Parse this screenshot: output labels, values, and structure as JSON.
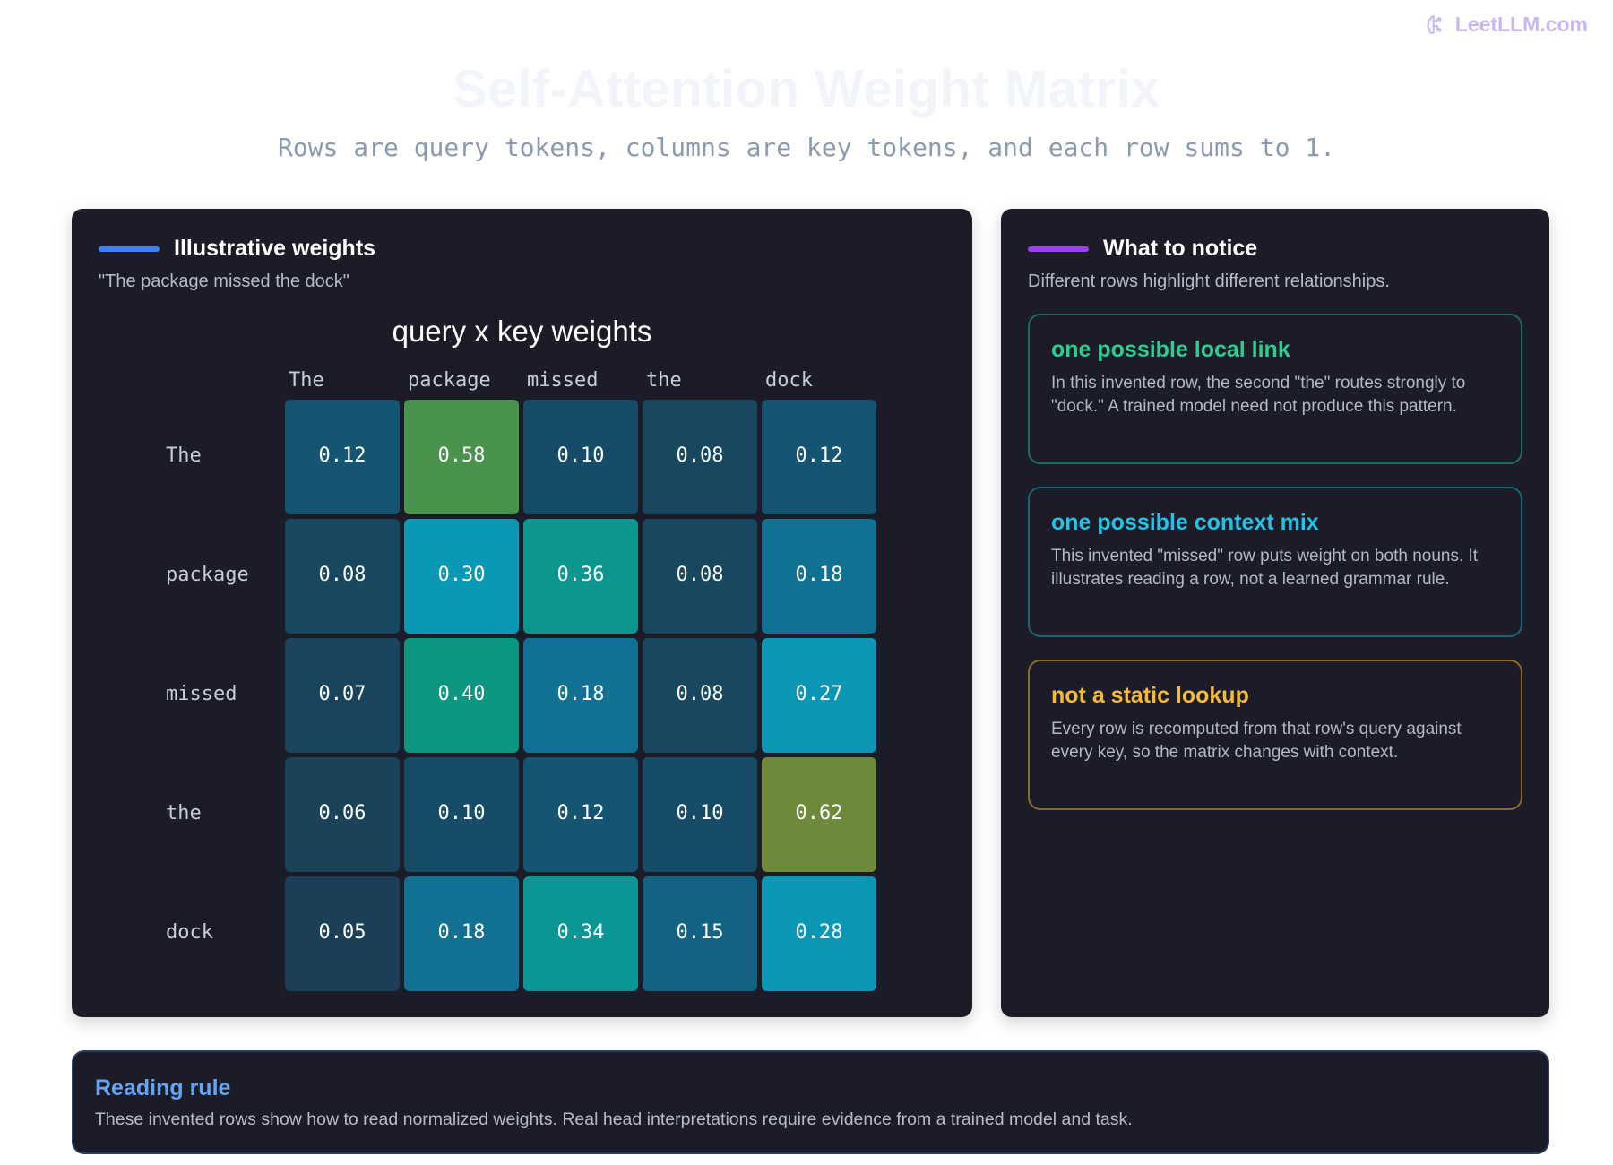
{
  "brand": {
    "text": "LeetLLM.com",
    "icon": "brain-icon",
    "color": "#c9b6f2"
  },
  "header": {
    "title": "Self-Attention Weight Matrix",
    "subtitle": "Rows are query tokens, columns are key tokens, and each row sums to 1."
  },
  "left_panel": {
    "title": "Illustrative weights",
    "subtitle": "\"The package missed the dock\"",
    "accent_color": "#3b82f6"
  },
  "chart_data": {
    "type": "heatmap",
    "title": "query x key weights",
    "row_labels": [
      "The",
      "package",
      "missed",
      "the",
      "dock"
    ],
    "col_labels": [
      "The",
      "package",
      "missed",
      "the",
      "dock"
    ],
    "values": [
      [
        0.12,
        0.58,
        0.1,
        0.08,
        0.12
      ],
      [
        0.08,
        0.3,
        0.36,
        0.08,
        0.18
      ],
      [
        0.07,
        0.4,
        0.18,
        0.08,
        0.27
      ],
      [
        0.06,
        0.1,
        0.12,
        0.1,
        0.62
      ],
      [
        0.05,
        0.18,
        0.34,
        0.15,
        0.28
      ]
    ],
    "value_format": "0.00"
  },
  "right_panel": {
    "title": "What to notice",
    "subtitle": "Different rows highlight different relationships.",
    "accent_color": "#9b40f0",
    "cards": [
      {
        "title": "one possible local link",
        "body": "In this invented row, the second \"the\" routes strongly to \"dock.\"  A trained model need not produce this pattern.",
        "color": "#2ecc8f",
        "border": "#1f6b5a"
      },
      {
        "title": "one possible context mix",
        "body": "This invented \"missed\" row puts weight on both nouns. It illustrates reading a row, not a learned grammar rule.",
        "color": "#22c3e6",
        "border": "#1a6473"
      },
      {
        "title": "not a static lookup",
        "body": "Every row is recomputed from that row's query against every key, so the matrix changes with context.",
        "color": "#f5b83b",
        "border": "#8a6a25"
      }
    ]
  },
  "footer": {
    "title": "Reading rule",
    "body": "These invented rows show how to read normalized weights. Real head interpretations require evidence from a trained model and task."
  }
}
